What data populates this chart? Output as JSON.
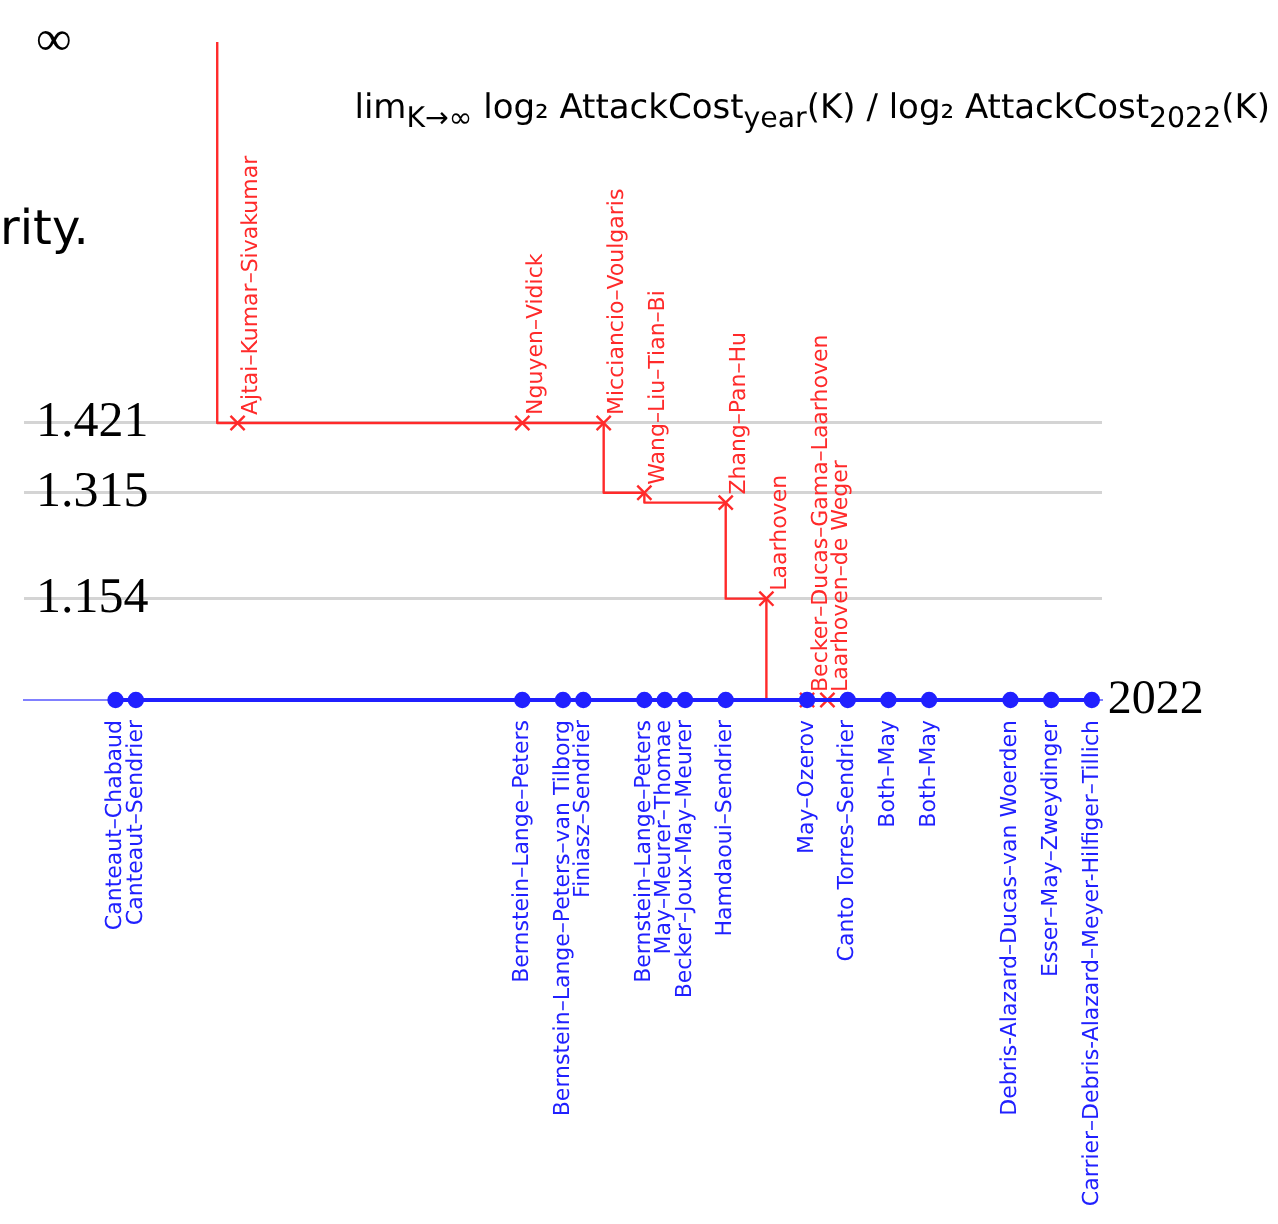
{
  "chart_data": {
    "type": "step",
    "title": "lim$_{K→∞}$ log₂ AttackCost$_{year}$(K) / log₂ AttackCost$_{2022}$(K)",
    "categories": [
      null,
      null,
      null,
      null,
      null,
      null,
      null,
      null,
      null,
      null,
      null,
      null,
      null,
      null,
      null,
      null,
      null,
      null,
      null,
      null,
      null,
      null,
      null,
      null,
      null,
      null,
      null,
      null,
      null,
      null,
      null,
      null,
      null,
      null,
      null,
      null,
      null,
      null,
      null,
      null,
      null,
      null,
      null,
      null,
      null,
      null,
      null,
      null,
      null,
      null,
      null,
      null,
      null
    ],
    "ylim": [
      1,
      2
    ],
    "yticks": [
      1.154,
      1.315,
      1.421,
      {
        "value": 2,
        "label": "∞"
      }
    ],
    "tick_labels": "y",
    "grid": "y",
    "legend": "right",
    "series": [
      {
        "color": "#ff2a2a",
        "marker": "cross",
        "values": [
          null,
          null,
          null,
          null,
          null,
          null,
          null,
          null,
          null,
          2,
          1.421,
          null,
          null,
          null,
          null,
          null,
          null,
          null,
          null,
          null,
          null,
          null,
          null,
          null,
          1.421,
          null,
          null,
          null,
          1.421,
          null,
          1.315,
          null,
          null,
          null,
          1.3,
          null,
          1.154,
          null,
          1,
          1,
          null,
          null,
          null,
          null,
          null,
          null,
          null,
          null,
          null,
          null,
          null,
          null,
          null
        ],
        "value_labels": [
          null,
          null,
          null,
          null,
          null,
          null,
          null,
          null,
          null,
          null,
          "Ajtai–Kumar–Sivakumar",
          null,
          null,
          null,
          null,
          null,
          null,
          null,
          null,
          null,
          null,
          null,
          null,
          null,
          "Nguyen–Vidick",
          null,
          null,
          null,
          "Micciancio–Voulgaris",
          null,
          "Wang–Liu–Tian–Bi",
          null,
          null,
          null,
          "Zhang–Pan–Hu",
          null,
          "Laarhoven",
          null,
          "Becker–Ducas–Gama–Laarhoven",
          "Laarhoven–de Weger",
          null,
          null,
          null,
          null,
          null,
          null,
          null,
          null,
          null,
          null,
          null,
          null,
          null
        ]
      },
      {
        "type": "line",
        "name": "2022",
        "color": "#2020ff",
        "marker": "circle",
        "values": [
          null,
          null,
          null,
          null,
          1,
          1,
          null,
          null,
          null,
          null,
          null,
          null,
          null,
          null,
          null,
          null,
          null,
          null,
          null,
          null,
          null,
          null,
          null,
          null,
          1,
          null,
          1,
          1,
          null,
          null,
          1,
          1,
          1,
          null,
          1,
          null,
          null,
          null,
          1,
          null,
          1,
          null,
          1,
          null,
          1,
          null,
          null,
          null,
          1,
          null,
          1,
          null,
          1
        ],
        "value_labels": [
          null,
          null,
          null,
          null,
          "Canteaut–Chabaud",
          "Canteaut–Sendrier",
          null,
          null,
          null,
          null,
          null,
          null,
          null,
          null,
          null,
          null,
          null,
          null,
          null,
          null,
          null,
          null,
          null,
          null,
          "Bernstein–Lange–Peters",
          null,
          "Bernstein–Lange–Peters–van Tilborg",
          "Finiasz–Sendrier",
          null,
          null,
          "Bernstein–Lange–Peters",
          "May–Meurer–Thomae",
          "Becker–Joux–May–Meurer",
          null,
          "Hamdaoui–Sendrier",
          null,
          null,
          null,
          "May–Ozerov",
          null,
          "Canto Torres–Sendrier",
          null,
          "Both–May",
          null,
          "Both–May",
          null,
          null,
          null,
          "Debris-Alazard–Ducas–van Woerden",
          null,
          "Esser–May–Zweydinger",
          null,
          "Carrier–Debris-Alazard–Meyer-Hilfiger–Tillich"
        ]
      }
    ],
    "annotations": [
      "rity."
    ]
  }
}
